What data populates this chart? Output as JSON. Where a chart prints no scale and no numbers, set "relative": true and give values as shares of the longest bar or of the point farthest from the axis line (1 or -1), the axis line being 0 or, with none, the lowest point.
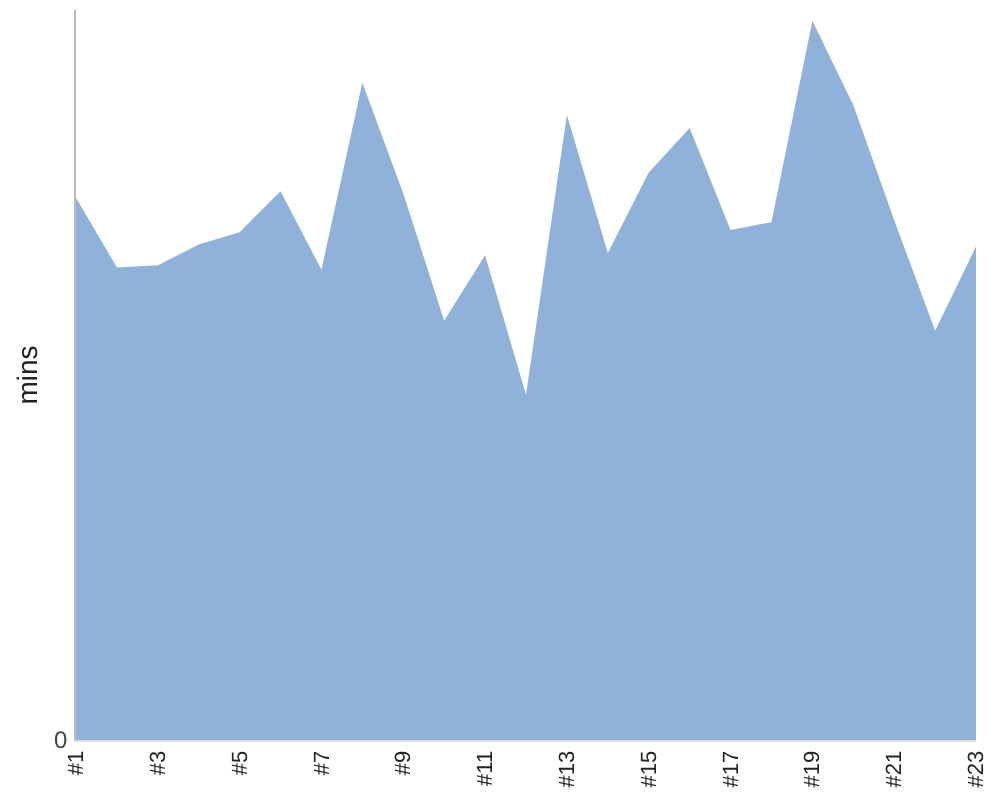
{
  "chart_data": {
    "type": "area",
    "relative": true,
    "ylabel": "mins",
    "color": "#8fb1da",
    "categories": [
      "#1",
      null,
      "#3",
      null,
      "#5",
      null,
      "#7",
      null,
      "#9",
      null,
      "#11",
      null,
      "#13",
      null,
      "#15",
      null,
      "#17",
      null,
      "#19",
      null,
      "#21",
      null,
      "#23"
    ],
    "values": [
      0.754,
      0.657,
      0.66,
      0.689,
      0.706,
      0.763,
      0.654,
      0.914,
      0.76,
      0.583,
      0.674,
      0.48,
      0.869,
      0.677,
      0.789,
      0.851,
      0.709,
      0.72,
      1,
      0.883,
      0.723,
      0.569,
      0.686
    ],
    "annotations": [
      "0"
    ]
  }
}
